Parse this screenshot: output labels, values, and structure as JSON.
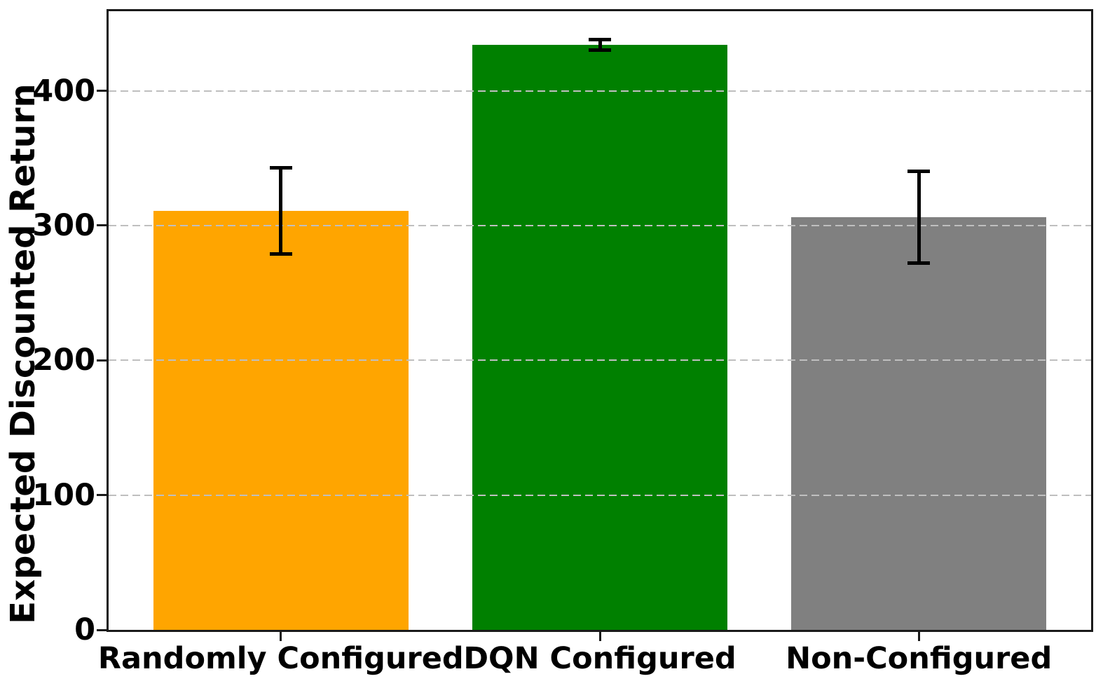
{
  "chart_data": {
    "type": "bar",
    "title": "",
    "categories": [
      "Randomly Configured",
      "DQN Configured",
      "Non-Configured"
    ],
    "values": [
      311,
      434,
      306
    ],
    "error_bars": [
      32,
      4,
      34
    ],
    "bar_colors": [
      "#FFA500",
      "#008000",
      "#808080"
    ],
    "error_color": "#000000",
    "xlabel": "",
    "ylabel": "Expected Discounted Return",
    "ylim": [
      0,
      459
    ],
    "yticks": [
      0,
      100,
      200,
      300,
      400
    ],
    "grid": {
      "axis": "y",
      "style": "dashed",
      "color": "#bfbfbf",
      "drawn_over_bars": true
    },
    "legend": "none",
    "axis_color": "#1a1a1a",
    "text_color": "#000000",
    "bar_width_fraction_of_slot": 0.8
  }
}
